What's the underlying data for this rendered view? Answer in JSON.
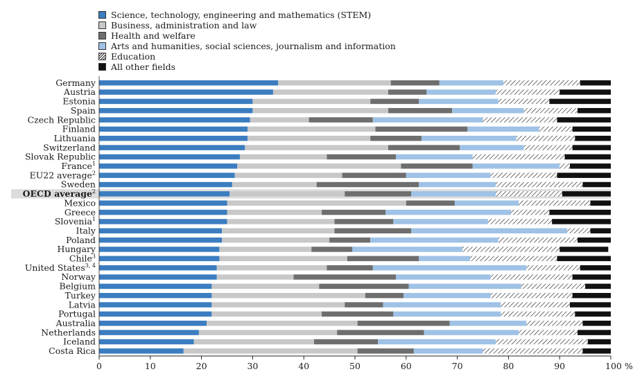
{
  "chart_data": {
    "type": "bar",
    "orientation": "horizontal",
    "stacked": true,
    "categories": [
      "Germany",
      "Austria",
      "Estonia",
      "Spain",
      "Czech Republic",
      "Finland",
      "Lithuania",
      "Switzerland",
      "Slovak Republic",
      "France",
      "EU22 average",
      "Sweden",
      "OECD average",
      "Mexico",
      "Greece",
      "Slovenia",
      "Italy",
      "Poland",
      "Hungary",
      "Chile",
      "United States",
      "Norway",
      "Belgium",
      "Turkey",
      "Latvia",
      "Portugal",
      "Australia",
      "Netherlands",
      "Iceland",
      "Costa Rica"
    ],
    "category_superscripts": [
      "",
      "",
      "",
      "",
      "",
      "",
      "",
      "",
      "",
      "1",
      "2",
      "",
      "2",
      "",
      "",
      "1",
      "",
      "",
      "",
      "3",
      "3, 4",
      "",
      "",
      "",
      "",
      "",
      "",
      "",
      "",
      ""
    ],
    "highlighted_category": "OECD average",
    "series": [
      {
        "name": "Science, technology, engineering and mathematics (STEM)",
        "color": "#3b7dc0",
        "pattern": "solid",
        "values": [
          35,
          34,
          30,
          30,
          29.5,
          29,
          29,
          28.5,
          27.5,
          27,
          26.5,
          26,
          25.5,
          25,
          25,
          25,
          24,
          24,
          23.5,
          23.5,
          23,
          23,
          22,
          22,
          22,
          22,
          21,
          19.5,
          18.5,
          16.5
        ]
      },
      {
        "name": "Business, administration and law",
        "color": "#c8c8c8",
        "pattern": "solid",
        "values": [
          22,
          22.5,
          23,
          26.5,
          11.5,
          25,
          24,
          28,
          17,
          32,
          21,
          16.5,
          22.5,
          35,
          18.5,
          21,
          22,
          21,
          18,
          25,
          21.5,
          15,
          21,
          30,
          26,
          21.5,
          29.5,
          27,
          23.5,
          34
        ]
      },
      {
        "name": "Health and welfare",
        "color": "#6e6e6e",
        "pattern": "solid",
        "values": [
          9.5,
          7.5,
          9.5,
          12.5,
          12.5,
          18,
          10,
          14,
          13.5,
          14,
          12.5,
          20,
          13,
          9.5,
          12.5,
          11.5,
          15,
          8,
          8,
          14,
          9,
          20,
          17.5,
          7.5,
          7.5,
          14,
          18,
          17,
          12.5,
          11
        ]
      },
      {
        "name": "Arts and humanities, social sciences, journalism and information",
        "color": "#9fc2e6",
        "pattern": "solid",
        "values": [
          12.5,
          13.5,
          15.5,
          14,
          21.5,
          14,
          18.5,
          12.5,
          15,
          17,
          16.5,
          15,
          16.5,
          12.5,
          24.5,
          18.5,
          30.5,
          25,
          21.5,
          10,
          30,
          18.5,
          22,
          17,
          23,
          21,
          15,
          18.5,
          23,
          13.5
        ]
      },
      {
        "name": "Education",
        "color": "#ffffff",
        "pattern": "hatched",
        "values": [
          15,
          12.5,
          10,
          10.5,
          14.5,
          6.5,
          11.5,
          9.5,
          18,
          2,
          13,
          17,
          13,
          14,
          7.5,
          12.5,
          4.5,
          15.5,
          19,
          17,
          10.5,
          16,
          12.5,
          16,
          13.5,
          14.5,
          11,
          11.5,
          18,
          19.5
        ]
      },
      {
        "name": "All other fields",
        "color": "#111111",
        "pattern": "solid",
        "values": [
          6,
          10,
          12,
          6.5,
          10.5,
          7.5,
          7,
          7.5,
          9,
          8,
          10.5,
          5.5,
          9.5,
          4,
          12,
          11.5,
          4,
          6.5,
          9.5,
          10.5,
          6,
          7.5,
          5,
          7.5,
          8,
          7,
          5.5,
          6.5,
          4.5,
          5.5
        ]
      }
    ],
    "x_ticks": [
      "0",
      "10",
      "20",
      "30",
      "40",
      "50",
      "60",
      "70",
      "80",
      "90",
      "100 %"
    ],
    "xlim": [
      0,
      100
    ],
    "xlabel": "",
    "ylabel": "",
    "title": "",
    "legend_position": "top-left",
    "grid": false
  }
}
